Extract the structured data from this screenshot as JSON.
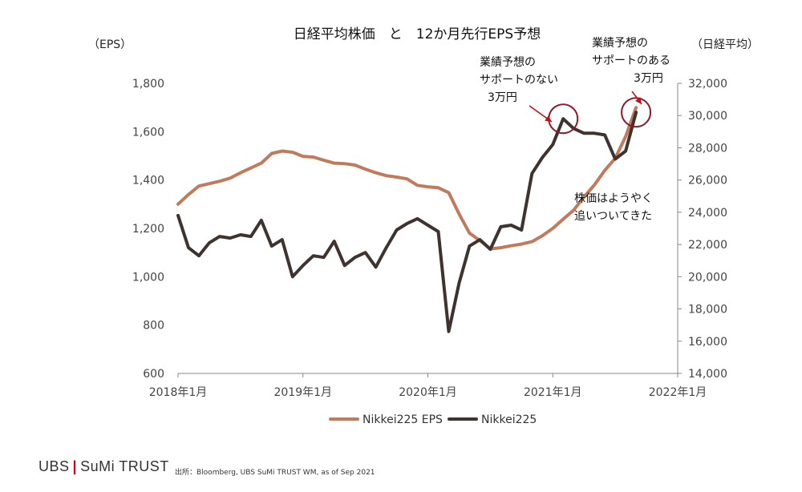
{
  "chart_data": {
    "type": "line",
    "title": "日経平均株価　と　12か月先行EPS予想",
    "left_axis_label": "（EPS）",
    "right_axis_label": "（日経平均）",
    "left_ylim": [
      600,
      1800
    ],
    "right_ylim": [
      14000,
      32000
    ],
    "left_ticks": [
      "600",
      "800",
      "1,000",
      "1,200",
      "1,400",
      "1,600",
      "1,800"
    ],
    "right_ticks": [
      "14,000",
      "16,000",
      "18,000",
      "20,000",
      "22,000",
      "24,000",
      "26,000",
      "28,000",
      "30,000",
      "32,000"
    ],
    "x_ticks": [
      "2018年1月",
      "2019年1月",
      "2020年1月",
      "2021年1月",
      "2022年1月"
    ],
    "xlim": [
      "2018-01",
      "2022-01"
    ],
    "grid": false,
    "legend_position": "bottom",
    "series": [
      {
        "name": "Nikkei225 EPS",
        "axis": "left",
        "color": "#c07a5c",
        "points": [
          [
            "2018-01",
            1300
          ],
          [
            "2018-02",
            1340
          ],
          [
            "2018-03",
            1375
          ],
          [
            "2018-04",
            1385
          ],
          [
            "2018-05",
            1395
          ],
          [
            "2018-06",
            1408
          ],
          [
            "2018-07",
            1430
          ],
          [
            "2018-08",
            1450
          ],
          [
            "2018-09",
            1470
          ],
          [
            "2018-10",
            1510
          ],
          [
            "2018-11",
            1520
          ],
          [
            "2018-12",
            1515
          ],
          [
            "2019-01",
            1498
          ],
          [
            "2019-02",
            1495
          ],
          [
            "2019-03",
            1482
          ],
          [
            "2019-04",
            1470
          ],
          [
            "2019-05",
            1468
          ],
          [
            "2019-06",
            1462
          ],
          [
            "2019-07",
            1445
          ],
          [
            "2019-08",
            1430
          ],
          [
            "2019-09",
            1418
          ],
          [
            "2019-10",
            1412
          ],
          [
            "2019-11",
            1405
          ],
          [
            "2019-12",
            1378
          ],
          [
            "2020-01",
            1372
          ],
          [
            "2020-02",
            1368
          ],
          [
            "2020-03",
            1348
          ],
          [
            "2020-04",
            1260
          ],
          [
            "2020-05",
            1180
          ],
          [
            "2020-06",
            1150
          ],
          [
            "2020-07",
            1115
          ],
          [
            "2020-08",
            1120
          ],
          [
            "2020-09",
            1128
          ],
          [
            "2020-10",
            1135
          ],
          [
            "2020-11",
            1145
          ],
          [
            "2020-12",
            1170
          ],
          [
            "2021-01",
            1200
          ],
          [
            "2021-02",
            1238
          ],
          [
            "2021-03",
            1275
          ],
          [
            "2021-04",
            1330
          ],
          [
            "2021-05",
            1380
          ],
          [
            "2021-06",
            1440
          ],
          [
            "2021-07",
            1490
          ],
          [
            "2021-08",
            1580
          ],
          [
            "2021-09",
            1700
          ]
        ]
      },
      {
        "name": "Nikkei225",
        "axis": "right",
        "color": "#3f3330",
        "points": [
          [
            "2018-01",
            23800
          ],
          [
            "2018-02",
            21800
          ],
          [
            "2018-03",
            21300
          ],
          [
            "2018-04",
            22100
          ],
          [
            "2018-05",
            22500
          ],
          [
            "2018-06",
            22400
          ],
          [
            "2018-07",
            22600
          ],
          [
            "2018-08",
            22500
          ],
          [
            "2018-09",
            23500
          ],
          [
            "2018-10",
            21900
          ],
          [
            "2018-11",
            22300
          ],
          [
            "2018-12",
            20000
          ],
          [
            "2019-01",
            20700
          ],
          [
            "2019-02",
            21300
          ],
          [
            "2019-03",
            21200
          ],
          [
            "2019-04",
            22200
          ],
          [
            "2019-05",
            20700
          ],
          [
            "2019-06",
            21200
          ],
          [
            "2019-07",
            21500
          ],
          [
            "2019-08",
            20600
          ],
          [
            "2019-09",
            21800
          ],
          [
            "2019-10",
            22900
          ],
          [
            "2019-11",
            23300
          ],
          [
            "2019-12",
            23600
          ],
          [
            "2020-01",
            23200
          ],
          [
            "2020-02",
            22800
          ],
          [
            "2020-03",
            16600
          ],
          [
            "2020-04",
            19600
          ],
          [
            "2020-05",
            21900
          ],
          [
            "2020-06",
            22300
          ],
          [
            "2020-07",
            21700
          ],
          [
            "2020-08",
            23100
          ],
          [
            "2020-09",
            23200
          ],
          [
            "2020-10",
            22900
          ],
          [
            "2020-11",
            26400
          ],
          [
            "2020-12",
            27400
          ],
          [
            "2021-01",
            28200
          ],
          [
            "2021-02",
            29800
          ],
          [
            "2021-03",
            29200
          ],
          [
            "2021-04",
            28900
          ],
          [
            "2021-05",
            28900
          ],
          [
            "2021-06",
            28800
          ],
          [
            "2021-07",
            27300
          ],
          [
            "2021-08",
            27800
          ],
          [
            "2021-09",
            30200
          ]
        ]
      }
    ],
    "annotations": [
      {
        "lines": [
          "業績予想の",
          "サポートのない",
          "3万円"
        ],
        "target": [
          "2021-02",
          29800
        ]
      },
      {
        "lines": [
          "業績予想の",
          "サポートのある",
          "3万円"
        ],
        "target": [
          "2021-09",
          30200
        ]
      },
      {
        "lines": [
          "株価はようやく",
          "追いついてきた"
        ]
      }
    ]
  },
  "footer": {
    "logo_left": "UBS",
    "logo_sep": "|",
    "logo_right": "SuMi TRUST",
    "source": "出所：Bloomberg, UBS SuMi TRUST WM, as of Sep 2021"
  }
}
